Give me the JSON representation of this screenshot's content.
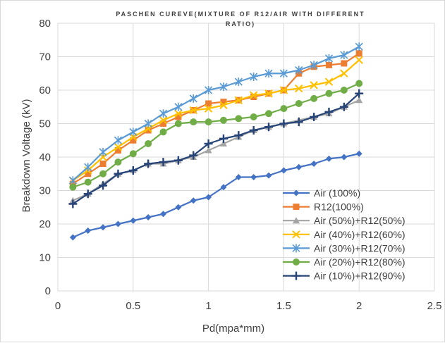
{
  "chart_data": {
    "type": "line",
    "title": "PASCHEN CUREVE(MIXTURE OF R12/AIR WITH DIFFERENT RATIO)",
    "title_lines": [
      "PASCHEN CUREVE(MIXTURE OF R12/AIR WITH DIFFERENT",
      "RATIO)"
    ],
    "xlabel": "Pd(mpa*mm)",
    "ylabel": "Breakdown Voltage (kV)",
    "xlim": [
      0,
      2.5
    ],
    "ylim": [
      0,
      80
    ],
    "xticks": [
      0,
      0.5,
      1,
      1.5,
      2,
      2.5
    ],
    "xtick_labels": [
      "0",
      "0.5",
      "1",
      "1.5",
      "2",
      "2.5"
    ],
    "yticks": [
      0,
      10,
      20,
      30,
      40,
      50,
      60,
      70,
      80
    ],
    "ytick_labels": [
      "0",
      "10",
      "20",
      "30",
      "40",
      "50",
      "60",
      "70",
      "80"
    ],
    "grid": "horizontal and vertical",
    "legend_position": "bottom-right",
    "x": [
      0.1,
      0.2,
      0.3,
      0.4,
      0.5,
      0.6,
      0.7,
      0.8,
      0.9,
      1.0,
      1.1,
      1.2,
      1.3,
      1.4,
      1.5,
      1.6,
      1.7,
      1.8,
      1.9,
      2.0
    ],
    "series": [
      {
        "name": "Air (100%)",
        "color": "#4472c4",
        "marker": "diamond",
        "values": [
          16,
          18,
          19,
          20,
          21,
          22,
          23,
          25,
          27,
          28,
          31,
          34,
          34,
          34.5,
          36,
          37,
          38,
          39.5,
          40,
          41
        ]
      },
      {
        "name": "R12(100%)",
        "color": "#ed7d31",
        "marker": "square",
        "values": [
          32,
          35,
          38,
          42,
          45,
          48,
          50,
          52,
          54,
          56,
          56.5,
          57,
          58,
          59,
          60,
          65,
          67,
          67.5,
          68,
          71
        ]
      },
      {
        "name": "Air (50%)+R12(50%)",
        "color": "#a5a5a5",
        "marker": "triangle",
        "values": [
          27,
          29,
          32,
          35,
          36,
          38,
          38,
          39,
          40,
          42,
          44,
          46,
          48,
          49,
          50,
          51,
          52,
          53,
          55,
          57
        ]
      },
      {
        "name": "Air (40%)+R12(60%)",
        "color": "#ffc000",
        "marker": "x",
        "values": [
          33,
          36,
          40,
          43,
          46,
          48.5,
          51,
          53,
          54,
          54.5,
          55.5,
          57,
          58.5,
          59,
          60,
          60.5,
          61.5,
          62.5,
          65,
          69
        ]
      },
      {
        "name": "Air (30%)+R12(70%)",
        "color": "#5b9bd5",
        "marker": "star",
        "values": [
          33,
          37,
          41.5,
          45,
          47.5,
          50,
          53,
          55,
          57.5,
          60,
          61,
          62.5,
          64,
          65,
          65,
          66,
          67.5,
          69.5,
          70.5,
          73
        ]
      },
      {
        "name": "Air (20%)+R12(80%)",
        "color": "#70ad47",
        "marker": "circle",
        "values": [
          31,
          32.5,
          35,
          38.5,
          41,
          44,
          47.5,
          50,
          50.5,
          50.5,
          51,
          51.5,
          52,
          53,
          54.5,
          56,
          57.5,
          59,
          60,
          62
        ]
      },
      {
        "name": "Air (10%)+R12(90%)",
        "color": "#264478",
        "marker": "plus",
        "values": [
          26,
          29,
          31.5,
          35,
          36,
          38,
          38.5,
          39,
          40.5,
          44,
          45.5,
          46.5,
          48,
          49,
          50,
          50.5,
          52,
          53.5,
          55,
          59
        ]
      }
    ]
  }
}
